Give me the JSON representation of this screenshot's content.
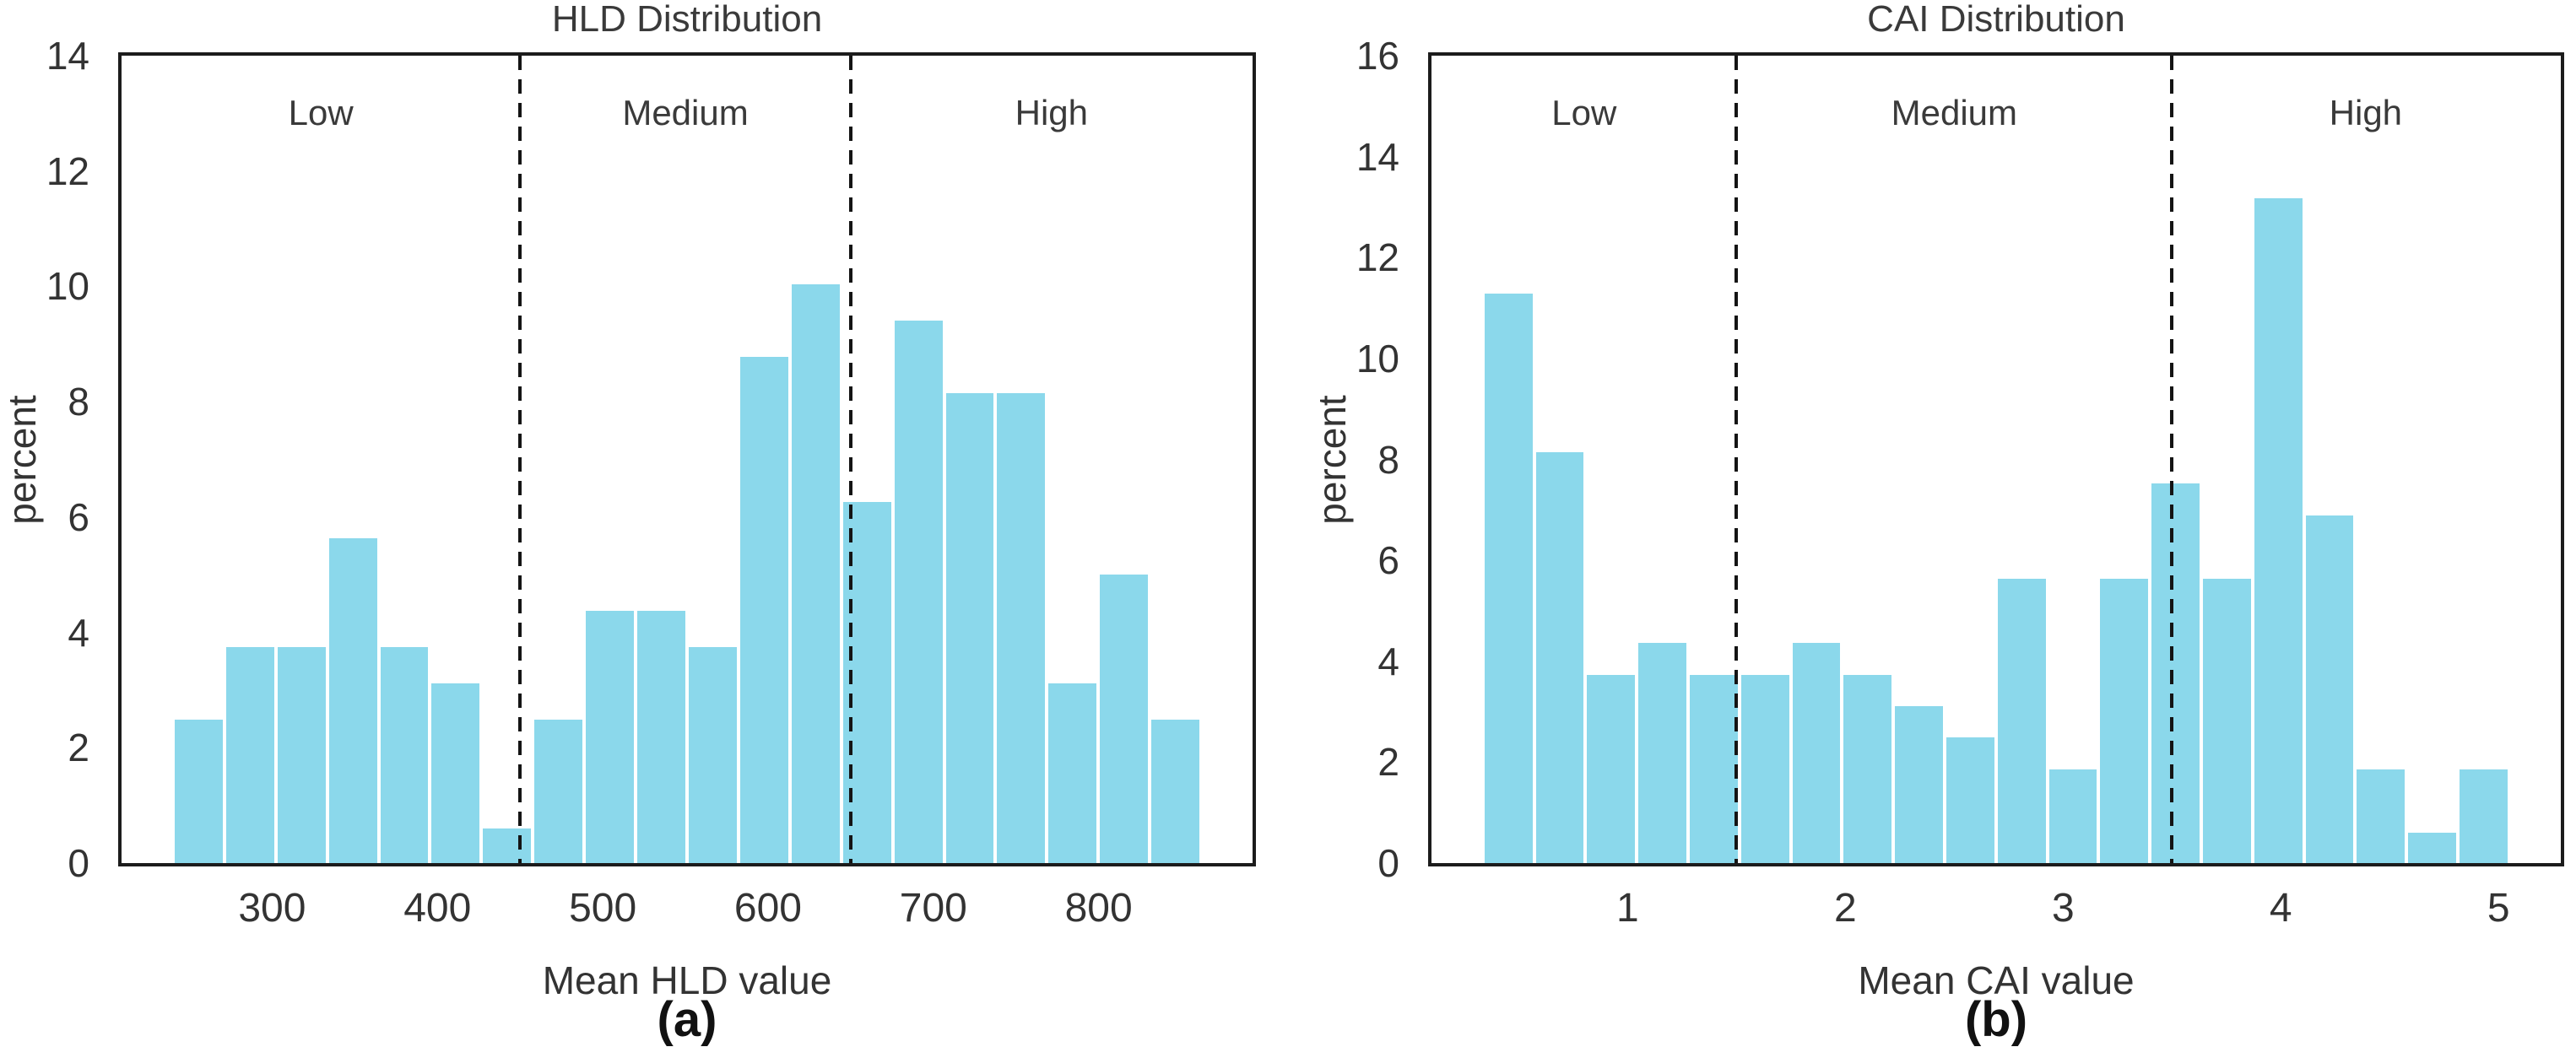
{
  "figure": {
    "background": "#ffffff",
    "text_color": "#333333"
  },
  "chart_data": [
    {
      "type": "bar",
      "id": "chart-hld",
      "title": "HLD Distribution",
      "xlabel": "Mean HLD value",
      "ylabel": "percent",
      "caption": "(a)",
      "bar_color": "#8BD8EB",
      "bar_edge_color": "#ffffff",
      "dash_color": "#141414",
      "grid": false,
      "xlim": [
        208.9,
        893.1
      ],
      "ylim": [
        0,
        14
      ],
      "xticks": [
        300,
        400,
        500,
        600,
        700,
        800
      ],
      "yticks": [
        0,
        2,
        4,
        6,
        8,
        10,
        12,
        14
      ],
      "bin_start": 240,
      "bin_width": 31.1,
      "values": [
        2.52,
        3.77,
        3.77,
        5.66,
        3.77,
        3.14,
        0.63,
        2.52,
        4.4,
        4.4,
        3.77,
        8.81,
        10.06,
        6.29,
        9.43,
        8.18,
        8.18,
        3.14,
        5.03,
        2.52
      ],
      "dashed_lines": [
        450,
        650
      ],
      "regions": [
        {
          "label": "Low",
          "x_center": 329.5
        },
        {
          "label": "Medium",
          "x_center": 550
        },
        {
          "label": "High",
          "x_center": 771.5
        }
      ]
    },
    {
      "type": "bar",
      "id": "chart-cai",
      "title": "CAI Distribution",
      "xlabel": "Mean CAI value",
      "ylabel": "percent",
      "caption": "(b)",
      "bar_color": "#8BD8EB",
      "bar_edge_color": "#ffffff",
      "dash_color": "#141414",
      "grid": false,
      "xlim": [
        0.099,
        5.286
      ],
      "ylim": [
        0,
        16
      ],
      "xticks": [
        1,
        2,
        3,
        4,
        5
      ],
      "yticks": [
        0,
        2,
        4,
        6,
        8,
        10,
        12,
        14,
        16
      ],
      "bin_start": 0.335,
      "bin_width": 0.2357,
      "values": [
        11.32,
        8.18,
        3.77,
        4.4,
        3.77,
        3.77,
        4.4,
        3.77,
        3.14,
        2.52,
        5.66,
        1.89,
        5.66,
        7.55,
        5.66,
        13.21,
        6.92,
        1.89,
        0.63,
        1.89
      ],
      "dashed_lines": [
        1.5,
        3.5
      ],
      "regions": [
        {
          "label": "Low",
          "x_center": 0.8
        },
        {
          "label": "Medium",
          "x_center": 2.5
        },
        {
          "label": "High",
          "x_center": 4.39
        }
      ]
    }
  ]
}
